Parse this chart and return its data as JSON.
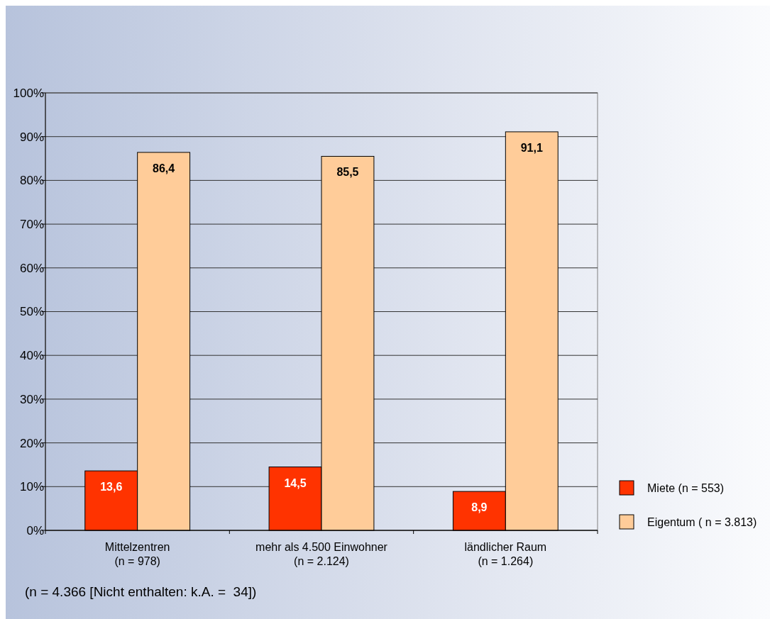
{
  "chart_data": {
    "type": "bar",
    "categories": [
      "Mittelzentren\n(n = 978)",
      "mehr als 4.500 Einwohner\n(n = 2.124)",
      "ländlicher Raum\n(n = 1.264)"
    ],
    "series": [
      {
        "name": "Miete (n = 553)",
        "color": "#ff3300",
        "values": [
          13.6,
          14.5,
          8.9
        ],
        "value_labels": [
          "13,6",
          "14,5",
          "8,9"
        ]
      },
      {
        "name": "Eigentum ( n = 3.813)",
        "color": "#ffcc99",
        "values": [
          86.4,
          85.5,
          91.1
        ],
        "value_labels": [
          "86,4",
          "85,5",
          "91,1"
        ]
      }
    ],
    "ylim": [
      0,
      100
    ],
    "yticks": [
      {
        "value": 0,
        "label": "0%"
      },
      {
        "value": 10,
        "label": "10%"
      },
      {
        "value": 20,
        "label": "20%"
      },
      {
        "value": 30,
        "label": "30%"
      },
      {
        "value": 40,
        "label": "40%"
      },
      {
        "value": 50,
        "label": "50%"
      },
      {
        "value": 60,
        "label": "60%"
      },
      {
        "value": 70,
        "label": "70%"
      },
      {
        "value": 80,
        "label": "80%"
      },
      {
        "value": 90,
        "label": "90%"
      },
      {
        "value": 100,
        "label": "100%"
      }
    ],
    "grid": "y",
    "legend": "right",
    "annotations": [
      "(n = 4.366 [Nicht enthalten: k.A. =  34])"
    ]
  }
}
